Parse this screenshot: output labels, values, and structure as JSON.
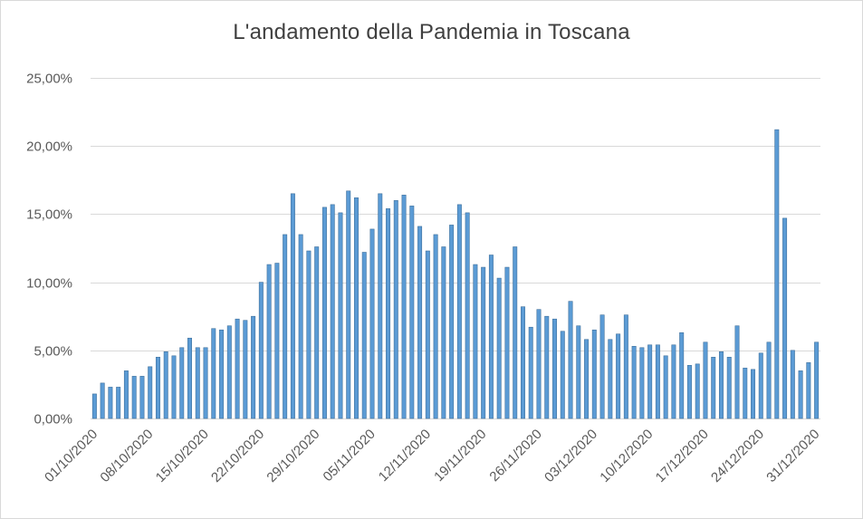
{
  "chart_data": {
    "type": "bar",
    "title": "L'andamento della Pandemia in Toscana",
    "xlabel": "",
    "ylabel": "",
    "ylim": [
      0,
      25
    ],
    "y_ticks": [
      "0,00%",
      "5,00%",
      "10,00%",
      "15,00%",
      "20,00%",
      "25,00%"
    ],
    "y_tick_values": [
      0,
      5,
      10,
      15,
      20,
      25
    ],
    "x_tick_labels": [
      "01/10/2020",
      "08/10/2020",
      "15/10/2020",
      "22/10/2020",
      "29/10/2020",
      "05/11/2020",
      "12/11/2020",
      "19/11/2020",
      "26/11/2020",
      "03/12/2020",
      "10/12/2020",
      "17/12/2020",
      "24/12/2020",
      "31/12/2020"
    ],
    "grid": true,
    "legend": "none",
    "bar_color": "#5b9bd5",
    "bar_edge_color": "#41719c",
    "start_date": "01/10/2020",
    "end_date": "31/12/2020",
    "values": [
      1.8,
      2.6,
      2.3,
      2.3,
      3.5,
      3.1,
      3.1,
      3.8,
      4.5,
      4.9,
      4.6,
      5.2,
      5.9,
      5.2,
      5.2,
      6.6,
      6.5,
      6.8,
      7.3,
      7.2,
      7.5,
      10.0,
      11.3,
      11.4,
      13.5,
      16.5,
      13.5,
      12.3,
      12.6,
      15.5,
      15.7,
      15.1,
      16.7,
      16.2,
      12.2,
      13.9,
      16.5,
      15.4,
      16.0,
      16.4,
      15.6,
      14.1,
      12.3,
      13.5,
      12.6,
      14.2,
      15.7,
      15.1,
      11.3,
      11.1,
      12.0,
      10.3,
      11.1,
      12.6,
      8.2,
      6.7,
      8.0,
      7.5,
      7.3,
      6.4,
      8.6,
      6.8,
      5.8,
      6.5,
      7.6,
      5.8,
      6.2,
      7.6,
      5.3,
      5.2,
      5.4,
      5.4,
      4.6,
      5.4,
      6.3,
      3.9,
      4.0,
      5.6,
      4.5,
      4.9,
      4.5,
      6.8,
      3.7,
      3.6,
      4.8,
      5.6,
      21.2,
      14.7,
      5.0,
      3.5,
      4.1,
      5.6
    ]
  }
}
